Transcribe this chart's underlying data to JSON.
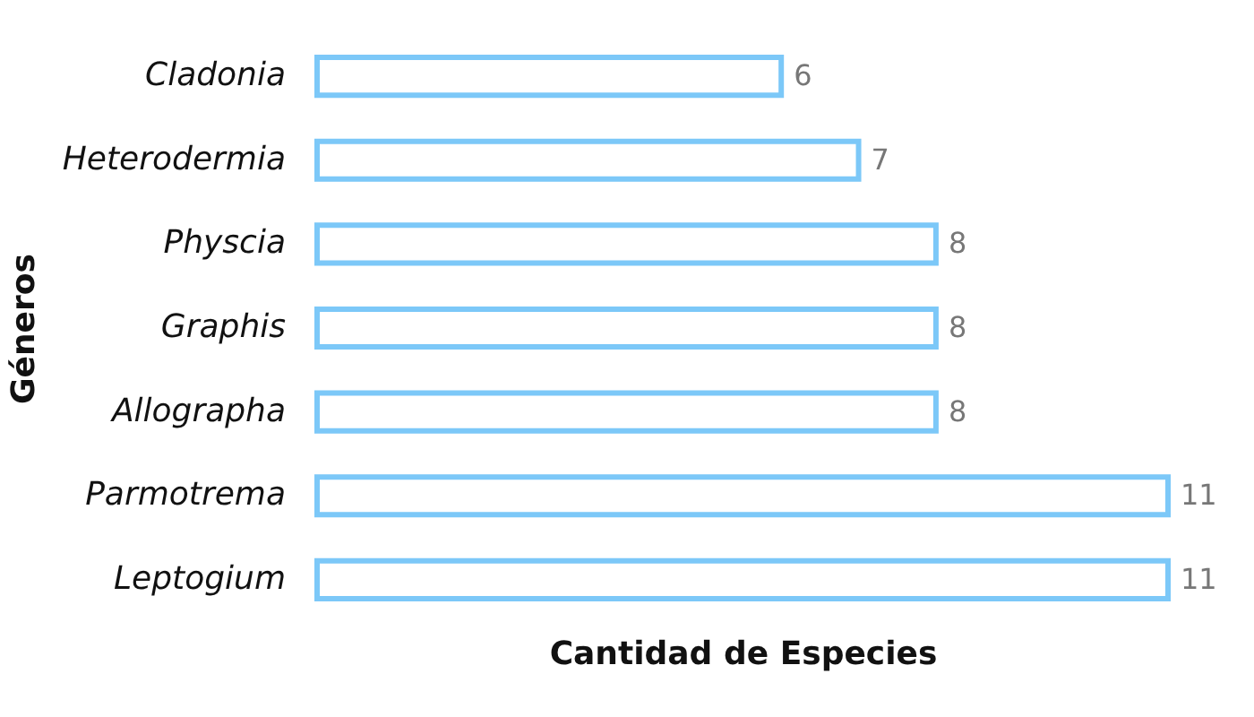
{
  "chart_data": {
    "type": "bar",
    "orientation": "horizontal",
    "xlabel": "Cantidad de Especies",
    "ylabel": "Géneros",
    "categories": [
      "Cladonia",
      "Heterodermia",
      "Physcia",
      "Graphis",
      "Allographa",
      "Parmotrema",
      "Leptogium"
    ],
    "values": [
      6,
      7,
      8,
      8,
      8,
      11,
      11
    ],
    "color": "#7cc8f8",
    "data_labels": true
  }
}
